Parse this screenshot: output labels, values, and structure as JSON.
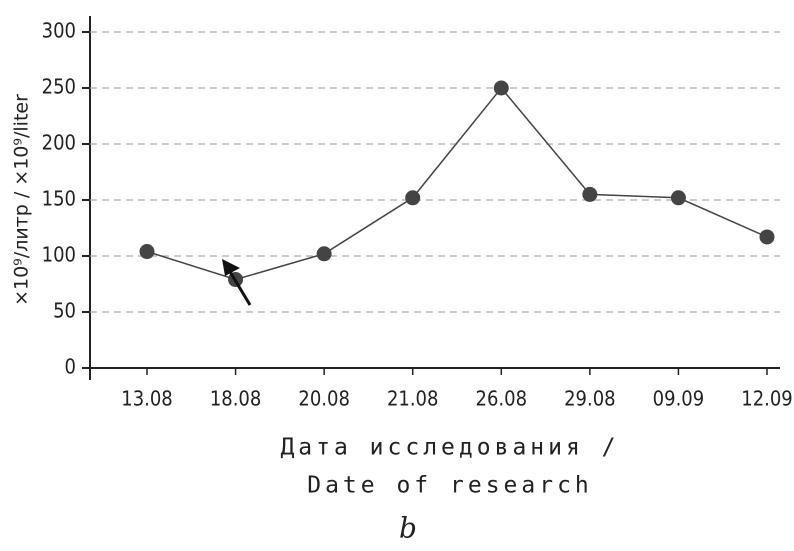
{
  "chart_data": {
    "type": "line",
    "y_label": "×10⁹/литр / ×10⁹/liter",
    "x_label": [
      "Дата исследования /",
      "Date of research"
    ],
    "subtitle": "b",
    "categories": [
      "13.08",
      "18.08",
      "20.08",
      "21.08",
      "26.08",
      "29.08",
      "09.09",
      "12.09"
    ],
    "values": [
      104,
      79,
      102,
      152,
      250,
      155,
      152,
      117
    ],
    "color": "#444444",
    "ylim": [
      0,
      300
    ],
    "yticks": [
      0,
      50,
      100,
      150,
      200,
      250,
      300
    ],
    "grid": true
  }
}
